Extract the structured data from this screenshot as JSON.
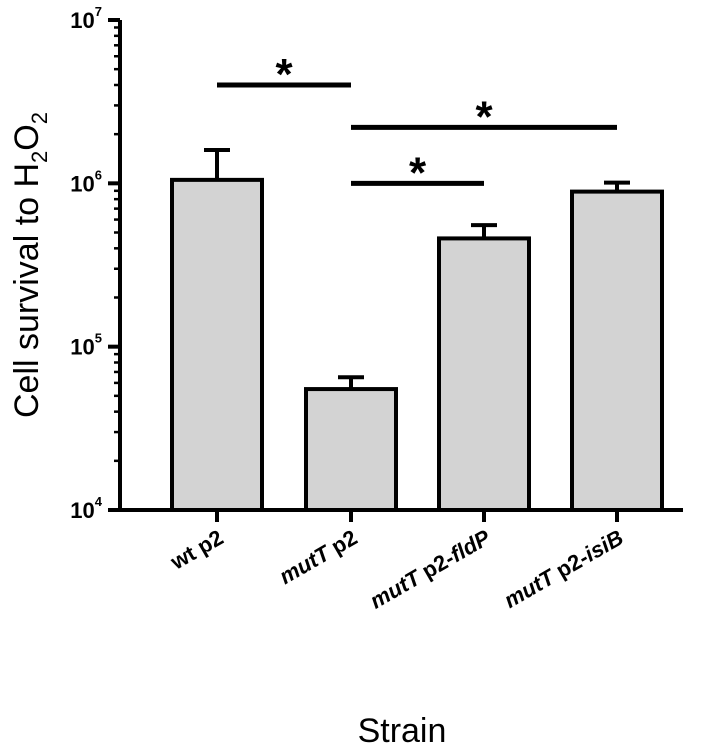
{
  "chart_data": {
    "type": "bar",
    "categories": [
      {
        "plain": "wt p2",
        "parts": [
          {
            "t": "wt p2",
            "i": false
          }
        ]
      },
      {
        "plain": "mutT p2",
        "parts": [
          {
            "t": "mutT",
            "i": true
          },
          {
            "t": " p2",
            "i": false
          }
        ]
      },
      {
        "plain": "mutT p2-fldP",
        "parts": [
          {
            "t": "mutT",
            "i": true
          },
          {
            "t": " p2-",
            "i": false
          },
          {
            "t": "fldP",
            "i": true
          }
        ]
      },
      {
        "plain": "mutT p2-isiB",
        "parts": [
          {
            "t": "mutT",
            "i": true
          },
          {
            "t": " p2-",
            "i": false
          },
          {
            "t": "isiB",
            "i": true
          }
        ]
      }
    ],
    "values": [
      1050000,
      55000,
      460000,
      890000
    ],
    "error_upper": [
      1600000,
      65000,
      555000,
      1010000
    ],
    "ylabel": {
      "text": "Cell survival to H",
      "sub1": "2",
      "mid": "O",
      "sub2": "2"
    },
    "xlabel": "Strain",
    "yscale": "log",
    "ylim": [
      10000,
      10000000
    ],
    "yticks": [
      {
        "value": 10000,
        "base": "10",
        "exp": "4"
      },
      {
        "value": 100000,
        "base": "10",
        "exp": "5"
      },
      {
        "value": 1000000,
        "base": "10",
        "exp": "6"
      },
      {
        "value": 10000000,
        "base": "10",
        "exp": "7"
      }
    ],
    "bar_color": "#d3d3d3",
    "significance": [
      {
        "from": 0,
        "to": 1,
        "label": "*",
        "y": 4000000
      },
      {
        "from": 1,
        "to": 3,
        "label": "*",
        "y": 2200000
      },
      {
        "from": 1,
        "to": 2,
        "label": "*",
        "y": 1000000
      }
    ],
    "grid": false,
    "legend": "none"
  }
}
